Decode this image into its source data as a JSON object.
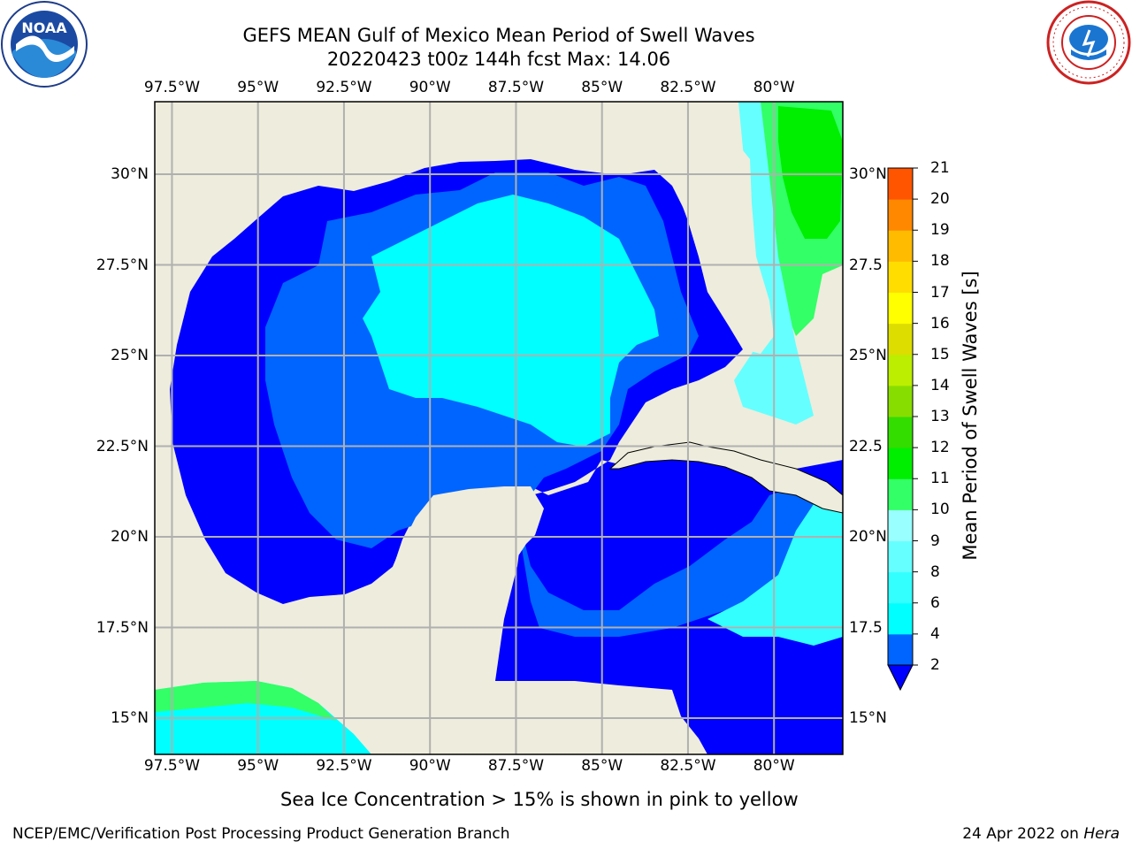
{
  "title": {
    "line1": "GEFS MEAN Gulf of Mexico Mean Period of Swell Waves",
    "line2": "20220423 t00z 144h fcst   Max: 14.06"
  },
  "logos": {
    "noaa": "NOAA",
    "nws": "NATIONAL WEATHER SERVICE"
  },
  "map": {
    "lon_labels": [
      "97.5°W",
      "95°W",
      "92.5°W",
      "90°W",
      "87.5°W",
      "85°W",
      "82.5°W",
      "80°W"
    ],
    "lat_labels": [
      "30°N",
      "27.5°N",
      "25°N",
      "22.5°N",
      "20°N",
      "17.5°N",
      "15°N"
    ],
    "lat_labels_right": [
      "30°N",
      "27.5",
      "25°N",
      "22.5",
      "20°N",
      "17.5",
      "15°N"
    ],
    "lon_range": [
      -98.0,
      -78.0
    ],
    "lat_range": [
      14.0,
      32.0
    ],
    "land_color": "#eeecdc",
    "grid": true
  },
  "colorbar": {
    "label": "Mean Period of Swell Waves [s]",
    "ticks": [
      "2",
      "4",
      "6",
      "8",
      "9",
      "10",
      "11",
      "12",
      "13",
      "14",
      "15",
      "16",
      "17",
      "18",
      "19",
      "20",
      "21"
    ],
    "colors": [
      "#0064ff",
      "#00ffff",
      "#33ffff",
      "#66ffff",
      "#99ffff",
      "#33ff66",
      "#00ee00",
      "#33dd00",
      "#88dd00",
      "#bbee00",
      "#dddd00",
      "#ffff00",
      "#ffdd00",
      "#ffbb00",
      "#ff8800",
      "#ff5500",
      "#ff2200",
      "#ff0000"
    ],
    "extend_color": "#0000ff"
  },
  "notes": {
    "ice": "Sea Ice Concentration > 15% is shown in pink to yellow"
  },
  "footer": {
    "left": "NCEP/EMC/Verification Post Processing Product Generation Branch",
    "date": "24 Apr 2022 on ",
    "machine": "Hera"
  }
}
